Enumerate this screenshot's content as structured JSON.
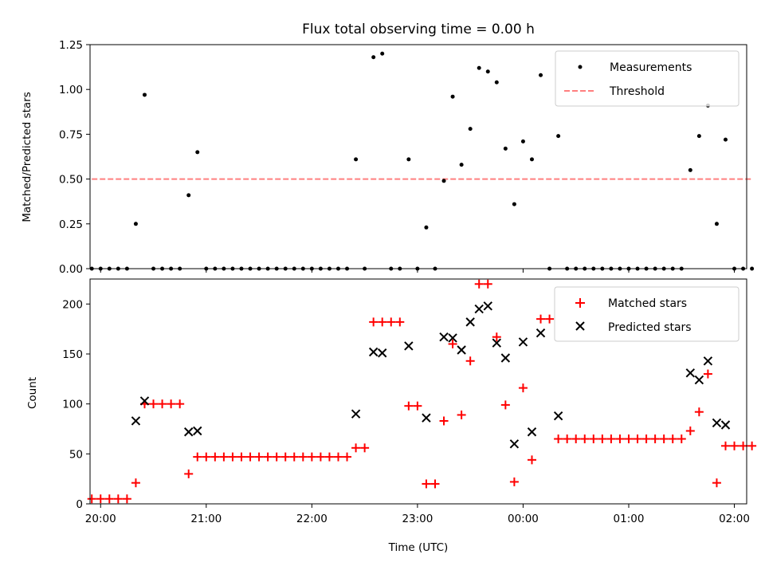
{
  "chart_data": [
    {
      "type": "scatter",
      "title": "Flux total observing time = 0.00 h",
      "xlabel": "",
      "ylabel": "Matched/Predicted stars",
      "ylim": [
        0,
        1.25
      ],
      "yticks": [
        "0.00",
        "0.25",
        "0.50",
        "0.75",
        "1.00",
        "1.25"
      ],
      "x_time_range": [
        "19:54",
        "02:07"
      ],
      "legend": {
        "position": "top-right",
        "entries": [
          "Measurements",
          "Threshold"
        ]
      },
      "threshold": {
        "name": "Threshold",
        "value": 0.5,
        "x_start": "19:55",
        "x_end": "02:10",
        "color": "#ff7f7f"
      },
      "series": [
        {
          "name": "Measurements",
          "marker": "dot",
          "color": "#000000",
          "points": [
            [
              "19:55",
              0
            ],
            [
              "20:00",
              0
            ],
            [
              "20:05",
              0
            ],
            [
              "20:10",
              0
            ],
            [
              "20:15",
              0
            ],
            [
              "20:20",
              0.25
            ],
            [
              "20:25",
              0.97
            ],
            [
              "20:30",
              0
            ],
            [
              "20:35",
              0
            ],
            [
              "20:40",
              0
            ],
            [
              "20:45",
              0
            ],
            [
              "20:50",
              0.41
            ],
            [
              "20:55",
              0.65
            ],
            [
              "21:00",
              0
            ],
            [
              "21:05",
              0
            ],
            [
              "21:10",
              0
            ],
            [
              "21:15",
              0
            ],
            [
              "21:20",
              0
            ],
            [
              "21:25",
              0
            ],
            [
              "21:30",
              0
            ],
            [
              "21:35",
              0
            ],
            [
              "21:40",
              0
            ],
            [
              "21:45",
              0
            ],
            [
              "21:50",
              0
            ],
            [
              "21:55",
              0
            ],
            [
              "22:00",
              0
            ],
            [
              "22:05",
              0
            ],
            [
              "22:10",
              0
            ],
            [
              "22:15",
              0
            ],
            [
              "22:20",
              0
            ],
            [
              "22:25",
              0.61
            ],
            [
              "22:30",
              0
            ],
            [
              "22:35",
              1.18
            ],
            [
              "22:40",
              1.2
            ],
            [
              "22:45",
              0
            ],
            [
              "22:50",
              0
            ],
            [
              "22:55",
              0.61
            ],
            [
              "23:00",
              0
            ],
            [
              "23:05",
              0.23
            ],
            [
              "23:10",
              0
            ],
            [
              "23:15",
              0.49
            ],
            [
              "23:20",
              0.96
            ],
            [
              "23:25",
              0.58
            ],
            [
              "23:30",
              0.78
            ],
            [
              "23:35",
              1.12
            ],
            [
              "23:40",
              1.1
            ],
            [
              "23:45",
              1.04
            ],
            [
              "23:50",
              0.67
            ],
            [
              "23:55",
              0.36
            ],
            [
              "00:00",
              0.71
            ],
            [
              "00:05",
              0.61
            ],
            [
              "00:10",
              1.08
            ],
            [
              "00:15",
              0
            ],
            [
              "00:20",
              0.74
            ],
            [
              "00:25",
              0
            ],
            [
              "00:30",
              0
            ],
            [
              "00:35",
              0
            ],
            [
              "00:40",
              0
            ],
            [
              "00:45",
              0
            ],
            [
              "00:50",
              0
            ],
            [
              "00:55",
              0
            ],
            [
              "01:00",
              0
            ],
            [
              "01:05",
              0
            ],
            [
              "01:10",
              0
            ],
            [
              "01:15",
              0
            ],
            [
              "01:20",
              0
            ],
            [
              "01:25",
              0
            ],
            [
              "01:30",
              0
            ],
            [
              "01:35",
              0.55
            ],
            [
              "01:40",
              0.74
            ],
            [
              "01:45",
              0.91
            ],
            [
              "01:50",
              0.25
            ],
            [
              "01:55",
              0.72
            ],
            [
              "02:00",
              0
            ],
            [
              "02:05",
              0
            ],
            [
              "02:10",
              0
            ]
          ]
        }
      ]
    },
    {
      "type": "scatter",
      "title": "",
      "xlabel": "Time (UTC)",
      "ylabel": "Count",
      "ylim": [
        0,
        225
      ],
      "yticks": [
        "0",
        "50",
        "100",
        "150",
        "200"
      ],
      "xticks": [
        "20:00",
        "21:00",
        "22:00",
        "23:00",
        "00:00",
        "01:00",
        "02:00"
      ],
      "legend": {
        "position": "top-right",
        "entries": [
          "Matched stars",
          "Predicted stars"
        ]
      },
      "series": [
        {
          "name": "Matched stars",
          "marker": "plus",
          "color": "#ff0000",
          "points": [
            [
              "19:55",
              5
            ],
            [
              "20:00",
              5
            ],
            [
              "20:05",
              5
            ],
            [
              "20:10",
              5
            ],
            [
              "20:15",
              5
            ],
            [
              "20:20",
              21
            ],
            [
              "20:25",
              100
            ],
            [
              "20:30",
              100
            ],
            [
              "20:35",
              100
            ],
            [
              "20:40",
              100
            ],
            [
              "20:45",
              100
            ],
            [
              "20:50",
              30
            ],
            [
              "20:55",
              47
            ],
            [
              "21:00",
              47
            ],
            [
              "21:05",
              47
            ],
            [
              "21:10",
              47
            ],
            [
              "21:15",
              47
            ],
            [
              "21:20",
              47
            ],
            [
              "21:25",
              47
            ],
            [
              "21:30",
              47
            ],
            [
              "21:35",
              47
            ],
            [
              "21:40",
              47
            ],
            [
              "21:45",
              47
            ],
            [
              "21:50",
              47
            ],
            [
              "21:55",
              47
            ],
            [
              "22:00",
              47
            ],
            [
              "22:05",
              47
            ],
            [
              "22:10",
              47
            ],
            [
              "22:15",
              47
            ],
            [
              "22:20",
              47
            ],
            [
              "22:25",
              56
            ],
            [
              "22:30",
              56
            ],
            [
              "22:35",
              182
            ],
            [
              "22:40",
              182
            ],
            [
              "22:45",
              182
            ],
            [
              "22:50",
              182
            ],
            [
              "22:55",
              98
            ],
            [
              "23:00",
              98
            ],
            [
              "23:05",
              20
            ],
            [
              "23:10",
              20
            ],
            [
              "23:15",
              83
            ],
            [
              "23:20",
              160
            ],
            [
              "23:25",
              89
            ],
            [
              "23:30",
              143
            ],
            [
              "23:35",
              220
            ],
            [
              "23:40",
              220
            ],
            [
              "23:45",
              167
            ],
            [
              "23:50",
              99
            ],
            [
              "23:55",
              22
            ],
            [
              "00:00",
              116
            ],
            [
              "00:05",
              44
            ],
            [
              "00:10",
              185
            ],
            [
              "00:15",
              185
            ],
            [
              "00:20",
              65
            ],
            [
              "00:25",
              65
            ],
            [
              "00:30",
              65
            ],
            [
              "00:35",
              65
            ],
            [
              "00:40",
              65
            ],
            [
              "00:45",
              65
            ],
            [
              "00:50",
              65
            ],
            [
              "00:55",
              65
            ],
            [
              "01:00",
              65
            ],
            [
              "01:05",
              65
            ],
            [
              "01:10",
              65
            ],
            [
              "01:15",
              65
            ],
            [
              "01:20",
              65
            ],
            [
              "01:25",
              65
            ],
            [
              "01:30",
              65
            ],
            [
              "01:35",
              73
            ],
            [
              "01:40",
              92
            ],
            [
              "01:45",
              130
            ],
            [
              "01:50",
              21
            ],
            [
              "01:55",
              58
            ],
            [
              "02:00",
              58
            ],
            [
              "02:05",
              58
            ],
            [
              "02:10",
              58
            ]
          ]
        },
        {
          "name": "Predicted stars",
          "marker": "x",
          "color": "#000000",
          "points": [
            [
              "20:20",
              83
            ],
            [
              "20:25",
              103
            ],
            [
              "20:50",
              72
            ],
            [
              "20:55",
              73
            ],
            [
              "22:25",
              90
            ],
            [
              "22:35",
              152
            ],
            [
              "22:40",
              151
            ],
            [
              "22:55",
              158
            ],
            [
              "23:05",
              86
            ],
            [
              "23:15",
              167
            ],
            [
              "23:20",
              166
            ],
            [
              "23:25",
              154
            ],
            [
              "23:30",
              182
            ],
            [
              "23:35",
              195
            ],
            [
              "23:40",
              198
            ],
            [
              "23:45",
              161
            ],
            [
              "23:50",
              146
            ],
            [
              "23:55",
              60
            ],
            [
              "00:00",
              162
            ],
            [
              "00:05",
              72
            ],
            [
              "00:10",
              171
            ],
            [
              "00:20",
              88
            ],
            [
              "01:35",
              131
            ],
            [
              "01:40",
              124
            ],
            [
              "01:45",
              143
            ],
            [
              "01:50",
              81
            ],
            [
              "01:55",
              79
            ]
          ]
        }
      ]
    }
  ]
}
